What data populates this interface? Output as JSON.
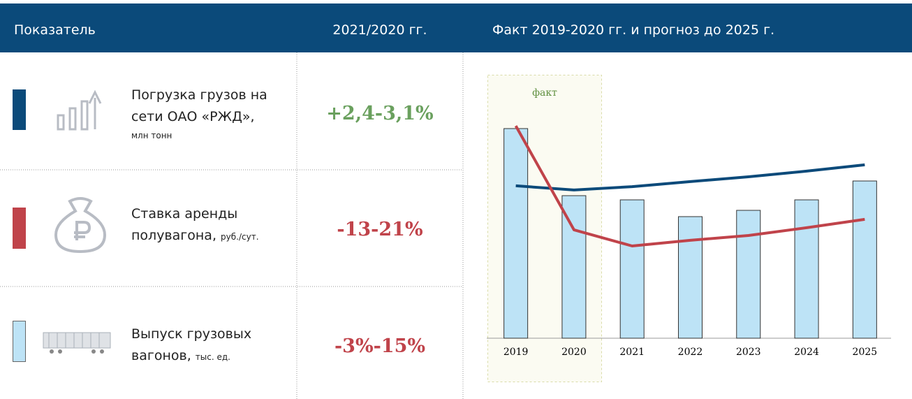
{
  "header": {
    "indicator": "Показатель",
    "change": "2021/2020 гг.",
    "chart": "Факт 2019-2020 гг. и прогноз до 2025 г."
  },
  "rows": [
    {
      "name": "Погрузка грузов на сети ОАО «РЖД»,",
      "unit": "млн тонн",
      "change": "+2,4-3,1%"
    },
    {
      "name": "Ставка аренды полувагона,",
      "unit": "руб./сут.",
      "change": "-13-21%"
    },
    {
      "name": "Выпуск грузовых вагонов,",
      "unit": "тыс. ед.",
      "change": "-3%-15%"
    }
  ],
  "chart_data": {
    "type": "bar",
    "annotation": "факт",
    "categories": [
      "2019",
      "2020",
      "2021",
      "2022",
      "2023",
      "2024",
      "2025"
    ],
    "ylim": [
      0,
      100
    ],
    "series": [
      {
        "type": "line",
        "color": "#0b4a7a",
        "values": [
          72.7,
          70.7,
          72.3,
          74.7,
          77,
          79.7,
          82.7
        ]
      },
      {
        "type": "line",
        "color": "#c0434a",
        "values": [
          101.3,
          51.7,
          44,
          46.7,
          49,
          52.7,
          56.7
        ]
      },
      {
        "type": "bar",
        "color": "#bde3f6",
        "values": [
          100,
          68,
          66,
          58,
          61,
          66,
          75
        ]
      }
    ]
  }
}
